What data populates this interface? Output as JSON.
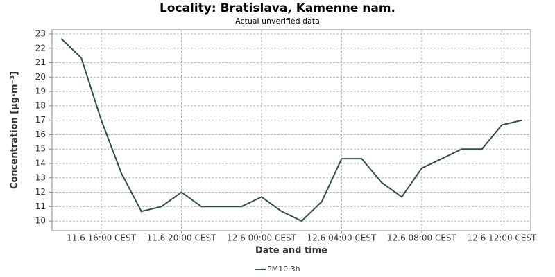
{
  "chart_data": {
    "type": "line",
    "title": "Locality: Bratislava, Kamenne nam.",
    "subtitle": "Actual unverified data",
    "x_label": "Date and time",
    "y_label": "Concentration [µg·m⁻³]",
    "x": [
      14,
      15,
      16,
      17,
      18,
      19,
      20,
      21,
      22,
      23,
      24,
      25,
      26,
      27,
      28,
      29,
      30,
      31,
      32,
      33,
      34,
      35,
      36,
      37
    ],
    "series": [
      {
        "name": "PM10 3h",
        "color": "#2f4f4a",
        "values": [
          22.67,
          21.33,
          17,
          13.33,
          10.67,
          11,
          12,
          11,
          11,
          11,
          11.67,
          10.67,
          10,
          11.33,
          14.33,
          14.33,
          12.67,
          11.67,
          13.67,
          14.33,
          15,
          15,
          16.67,
          17
        ]
      }
    ],
    "xlim": [
      13.54,
      37.44
    ],
    "xticks": [
      {
        "value": 16,
        "label": "11.6 16:00 CEST"
      },
      {
        "value": 20,
        "label": "11.6 20:00 CEST"
      },
      {
        "value": 24,
        "label": "12.6 00:00 CEST"
      },
      {
        "value": 28,
        "label": "12.6 04:00 CEST"
      },
      {
        "value": 32,
        "label": "12.6 08:00 CEST"
      },
      {
        "value": 36,
        "label": "12.6 12:00 CEST"
      }
    ],
    "ylim": [
      9.33,
      23.29
    ],
    "yticks": [
      10,
      11,
      12,
      13,
      14,
      15,
      16,
      17,
      18,
      19,
      20,
      21,
      22,
      23
    ],
    "grid": true
  }
}
